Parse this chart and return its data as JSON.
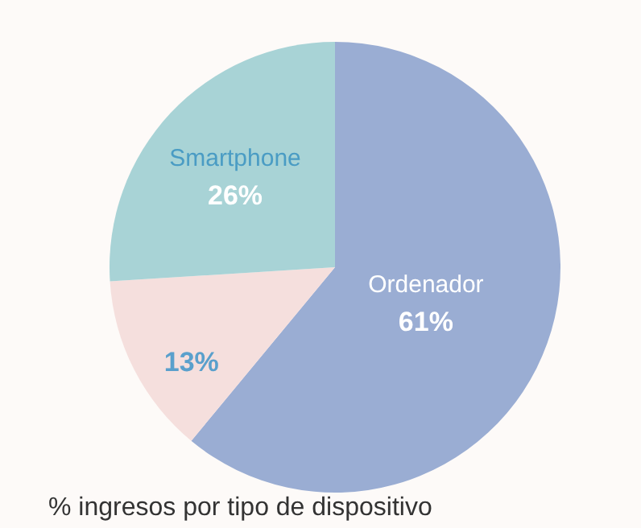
{
  "chart_data": {
    "type": "pie",
    "categories": [
      "Ordenador",
      null,
      "Smartphone"
    ],
    "values": [
      61,
      13,
      26
    ],
    "colors": [
      "#9aadd3",
      "#f5dfdd",
      "#a8d3d6"
    ],
    "value_labels": [
      "61%",
      "13%",
      "26%"
    ],
    "annotations": [
      "% ingresos por tipo de dispositivo"
    ]
  }
}
